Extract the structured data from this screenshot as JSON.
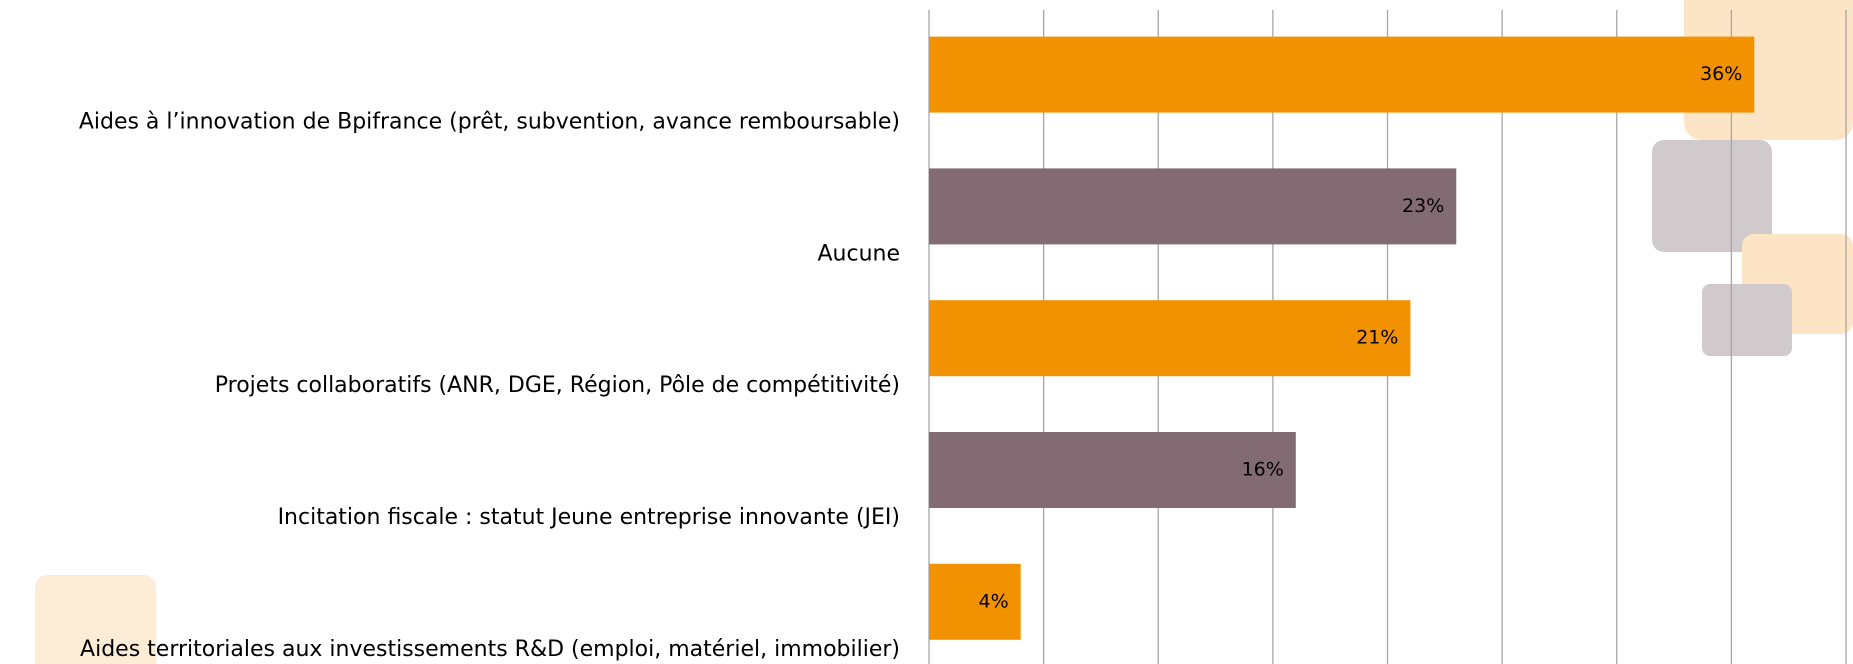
{
  "chart_data": {
    "type": "barh",
    "categories": [
      "Aides à l’innovation de Bpifrance (prêt, subvention, avance remboursable)",
      "Aucune",
      "Projets collaboratifs (ANR, DGE, Région, Pôle de compétitivité)",
      "Incitation fiscale : statut Jeune entreprise innovante (JEI)",
      "Aides territoriales aux investissements R&D (emploi, matériel, immobilier)"
    ],
    "values": [
      36,
      23,
      21,
      16,
      4
    ],
    "value_labels": [
      "36%",
      "23%",
      "21%",
      "16%",
      "4%"
    ],
    "colors": [
      "#f39200",
      "#836b74",
      "#f39200",
      "#836b74",
      "#f39200"
    ],
    "xlim": [
      0,
      40
    ],
    "xticks": [
      0,
      5,
      10,
      15,
      20,
      25,
      30,
      35,
      40
    ],
    "grid": true
  }
}
